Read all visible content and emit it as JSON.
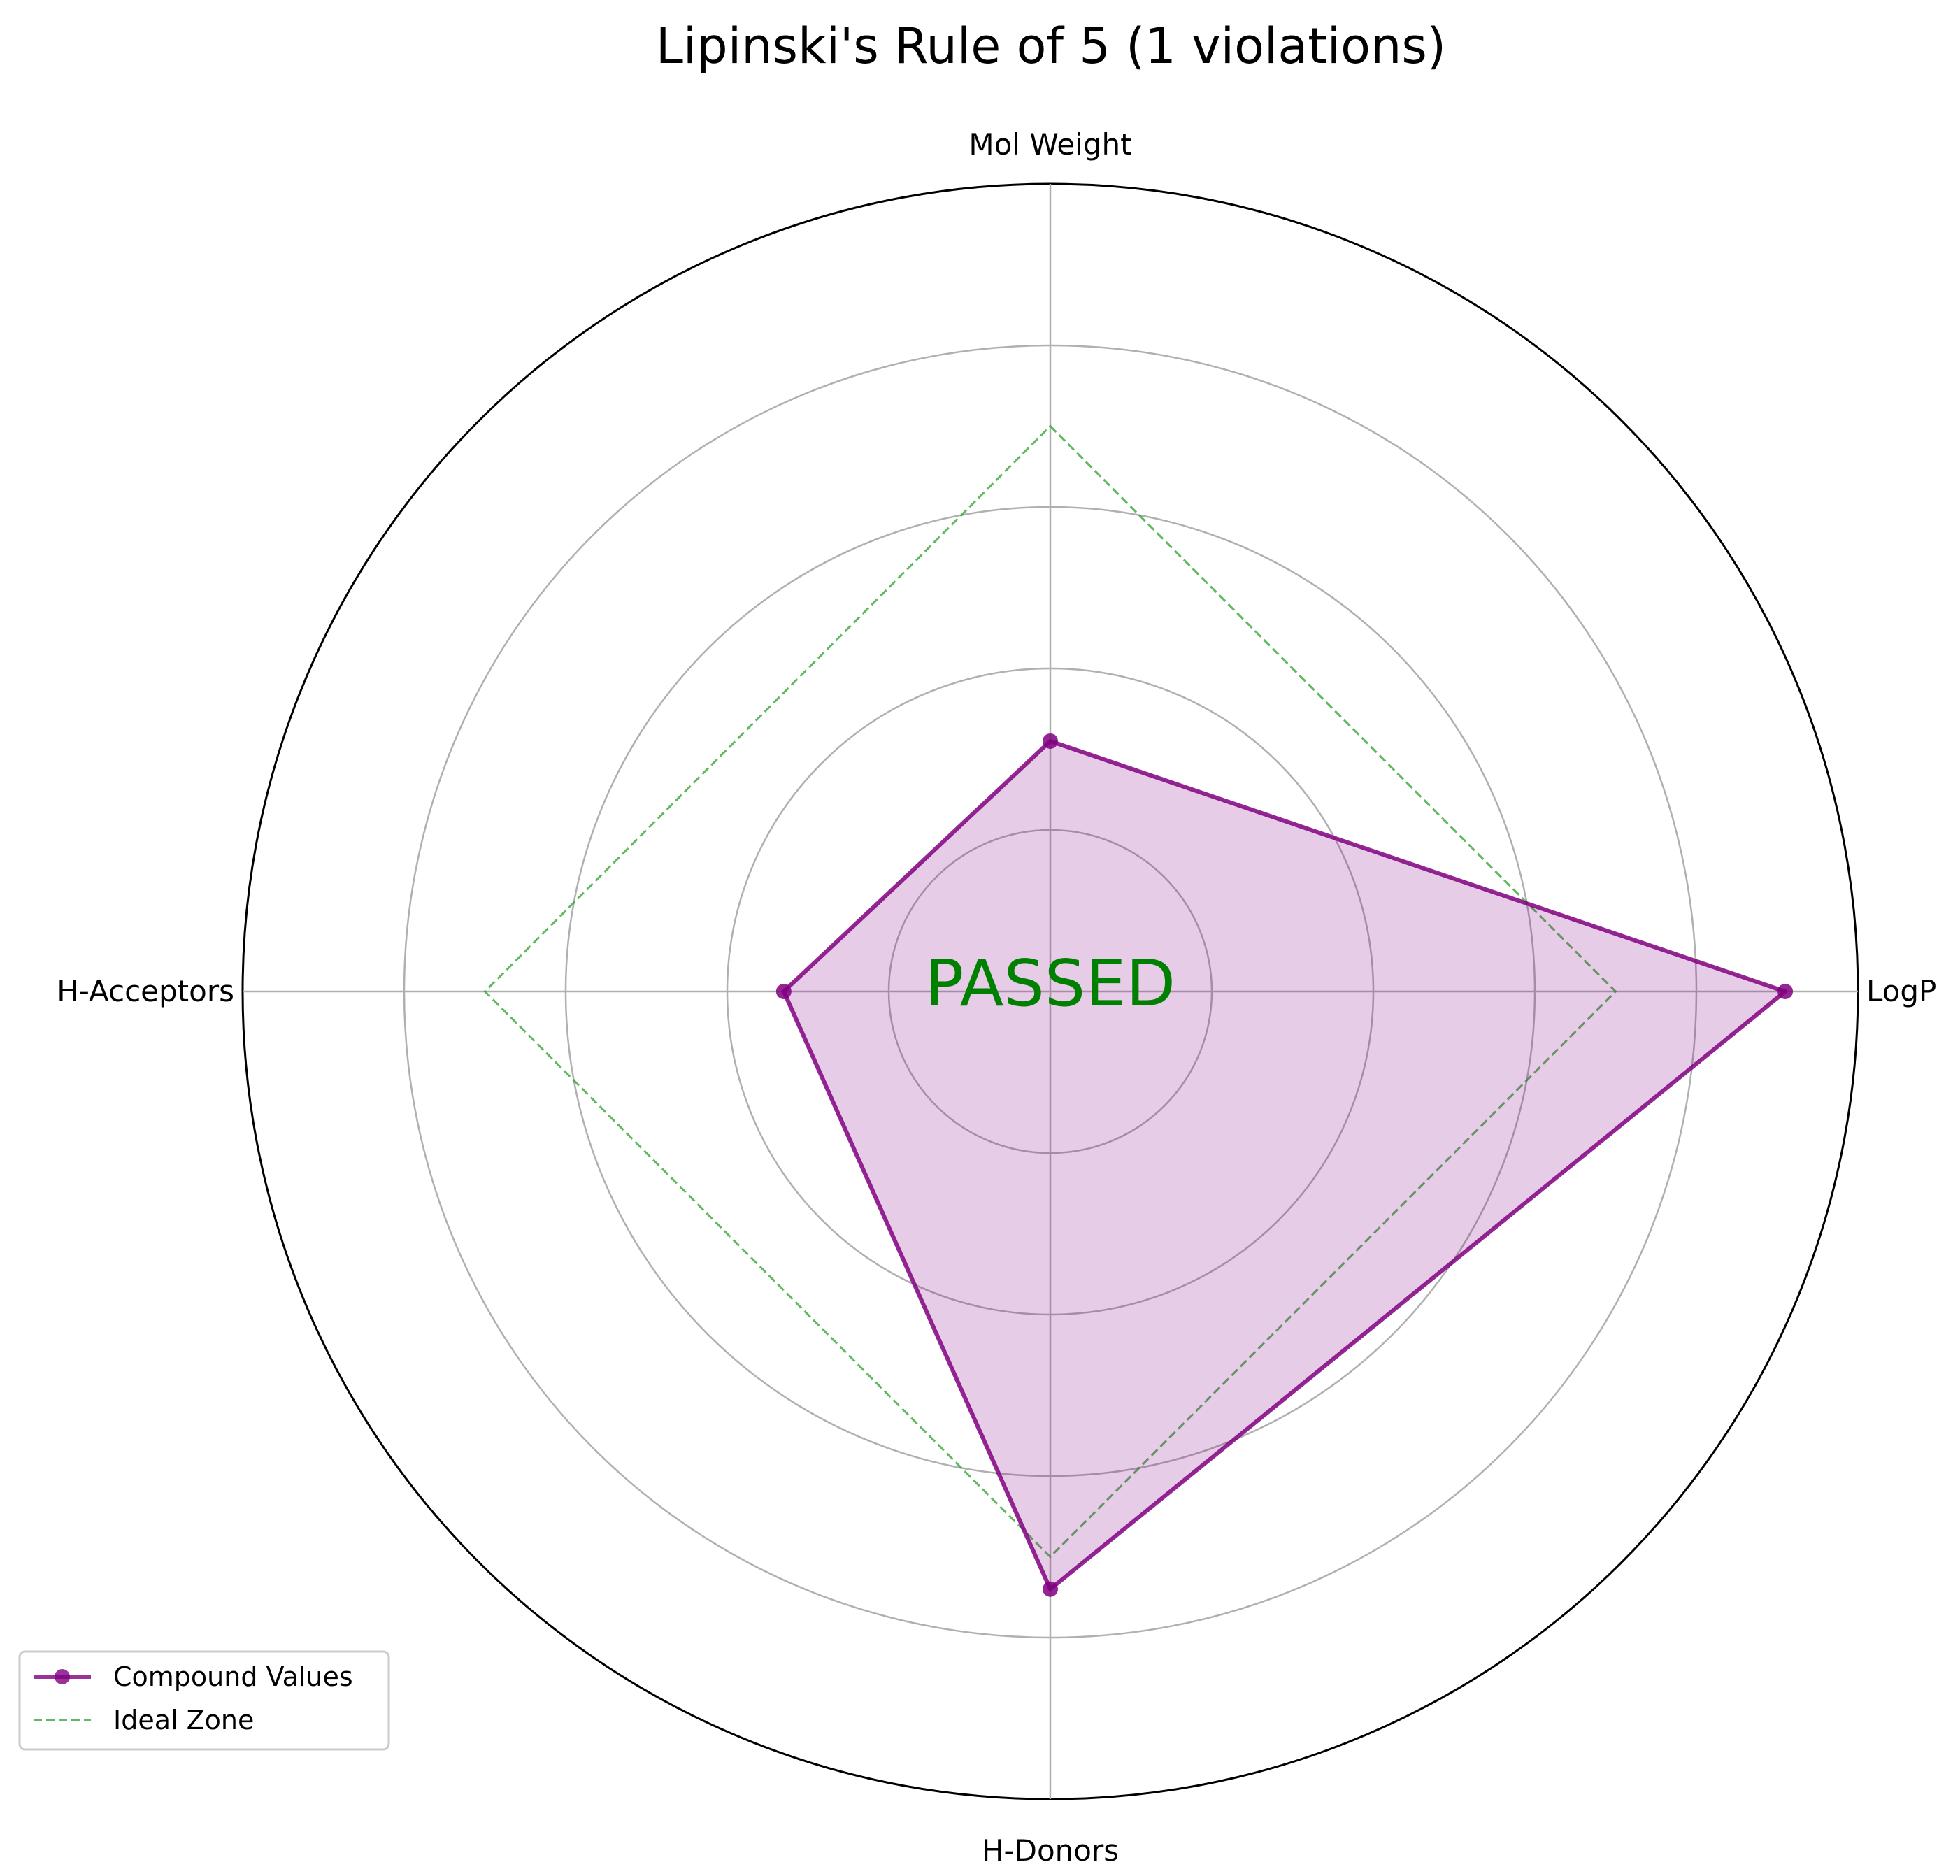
{
  "chart_data": {
    "type": "radar",
    "title": "Lipinski's Rule of 5 (1 violations)",
    "axes": [
      "Mol Weight",
      "LogP",
      "H-Donors",
      "H-Acceptors"
    ],
    "rlim": [
      0,
      1.0
    ],
    "grid": true,
    "rings": [
      0.2,
      0.4,
      0.6,
      0.8,
      1.0
    ],
    "series": [
      {
        "name": "Compound Values",
        "values": [
          0.31,
          0.91,
          0.74,
          0.33
        ],
        "color": "#800080",
        "fill": true,
        "marker": "circle",
        "linestyle": "solid"
      },
      {
        "name": "Ideal Zone",
        "values": [
          0.7,
          0.7,
          0.7,
          0.7
        ],
        "color": "#2ca02c",
        "fill": false,
        "linestyle": "dashed"
      }
    ],
    "center_label": "PASSED",
    "center_label_color": "#008000",
    "legend_position": "lower-left"
  }
}
